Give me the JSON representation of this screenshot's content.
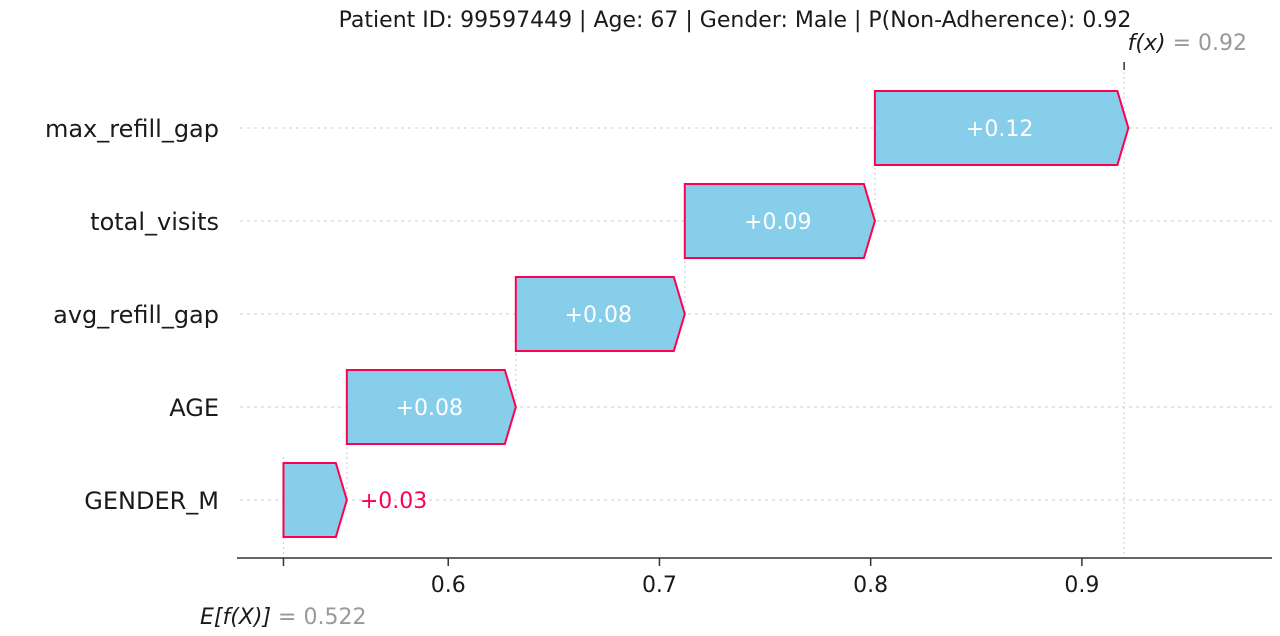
{
  "chart_data": {
    "type": "waterfall",
    "title": "Patient ID: 99597449 | Age: 67 | Gender: Male | P(Non-Adherence): 0.92",
    "base_value": 0.522,
    "base_value_label": "0.522",
    "output_value": 0.92,
    "output_value_label": "0.92",
    "base_value_prefix": "E[f(X)]",
    "output_value_prefix": "f(x)",
    "equals_sign": " = ",
    "xlim": [
      0.5,
      0.99
    ],
    "xticks": [
      0.6,
      0.7,
      0.8,
      0.9
    ],
    "xtick_labels": [
      "0.6",
      "0.7",
      "0.8",
      "0.9"
    ],
    "features": [
      {
        "name": "max_refill_gap",
        "value": 0.12,
        "label": "+0.12"
      },
      {
        "name": "total_visits",
        "value": 0.09,
        "label": "+0.09"
      },
      {
        "name": "avg_refill_gap",
        "value": 0.08,
        "label": "+0.08"
      },
      {
        "name": "AGE",
        "value": 0.08,
        "label": "+0.08"
      },
      {
        "name": "GENDER_M",
        "value": 0.03,
        "label": "+0.03"
      }
    ],
    "colors": {
      "positive_fill": "#87ceeb",
      "positive_edge": "#ff0051",
      "label_inside": "#ffffff",
      "label_outside": "#ff0051",
      "text": "#1a1a1a",
      "muted": "#999999",
      "grid": "#cccccc",
      "axis": "#333333"
    }
  }
}
